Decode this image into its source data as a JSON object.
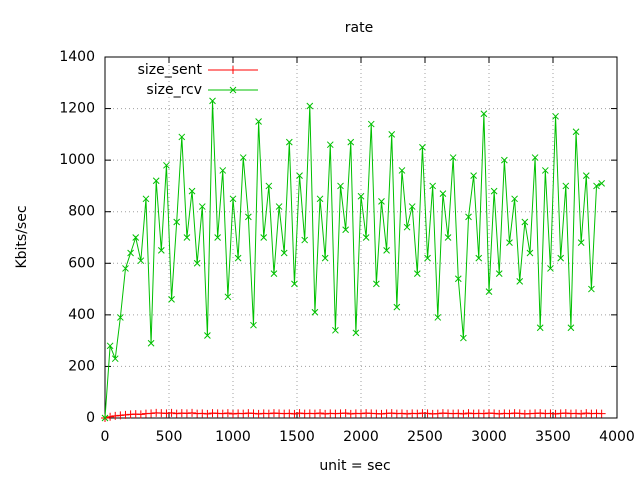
{
  "chart_data": {
    "type": "line",
    "title": "rate",
    "x_label": "unit = sec",
    "y_label": "Kbits/sec",
    "x": [
      0,
      40,
      80,
      120,
      160,
      200,
      240,
      280,
      320,
      360,
      400,
      440,
      480,
      520,
      560,
      600,
      640,
      680,
      720,
      760,
      800,
      840,
      880,
      920,
      960,
      1000,
      1040,
      1080,
      1120,
      1160,
      1200,
      1240,
      1280,
      1320,
      1360,
      1400,
      1440,
      1480,
      1520,
      1560,
      1600,
      1640,
      1680,
      1720,
      1760,
      1800,
      1840,
      1880,
      1920,
      1960,
      2000,
      2040,
      2080,
      2120,
      2160,
      2200,
      2240,
      2280,
      2320,
      2360,
      2400,
      2440,
      2480,
      2520,
      2560,
      2600,
      2640,
      2680,
      2720,
      2760,
      2800,
      2840,
      2880,
      2920,
      2960,
      3000,
      3040,
      3080,
      3120,
      3160,
      3200,
      3240,
      3280,
      3320,
      3360,
      3400,
      3440,
      3480,
      3520,
      3560,
      3600,
      3640,
      3680,
      3720,
      3760,
      3800,
      3840,
      3880
    ],
    "series": [
      {
        "name": "size_sent",
        "color": "#ff0000",
        "marker": "plus",
        "values": [
          0,
          5,
          8,
          10,
          12,
          14,
          15,
          14,
          17,
          18,
          20,
          19,
          18,
          20,
          17,
          19,
          18,
          20,
          17,
          18,
          16,
          19,
          18,
          17,
          19,
          16,
          18,
          17,
          19,
          18,
          16,
          18,
          17,
          19,
          18,
          17,
          18,
          16,
          19,
          17,
          18,
          17,
          19,
          16,
          18,
          17,
          18,
          19,
          16,
          18,
          17,
          19,
          18,
          17,
          16,
          18,
          19,
          17,
          18,
          16,
          18,
          17,
          19,
          18,
          16,
          17,
          19,
          18,
          17,
          18,
          16,
          19,
          17,
          18,
          17,
          19,
          18,
          16,
          18,
          17,
          19,
          18,
          16,
          17,
          18,
          19,
          17,
          18,
          16,
          18,
          19,
          17,
          18,
          16,
          19,
          17,
          18,
          17
        ]
      },
      {
        "name": "size_rcv",
        "color": "#00c000",
        "marker": "cross",
        "values": [
          0,
          280,
          230,
          390,
          580,
          640,
          700,
          610,
          850,
          290,
          920,
          650,
          980,
          460,
          760,
          1090,
          700,
          880,
          600,
          820,
          320,
          1230,
          700,
          960,
          470,
          850,
          620,
          1010,
          780,
          360,
          1150,
          700,
          900,
          560,
          820,
          640,
          1070,
          520,
          940,
          690,
          1210,
          410,
          850,
          620,
          1060,
          340,
          900,
          730,
          1070,
          330,
          860,
          700,
          1140,
          520,
          840,
          650,
          1100,
          430,
          960,
          740,
          820,
          560,
          1050,
          620,
          900,
          390,
          870,
          700,
          1010,
          540,
          310,
          780,
          940,
          620,
          1180,
          490,
          880,
          560,
          1000,
          680,
          850,
          530,
          760,
          640,
          1010,
          350,
          960,
          580,
          1170,
          620,
          900,
          350,
          1110,
          680,
          940,
          500,
          900,
          910
        ]
      }
    ],
    "xlim": [
      0,
      4000
    ],
    "xticks": [
      0,
      500,
      1000,
      1500,
      2000,
      2500,
      3000,
      3500,
      4000
    ],
    "ylim": [
      0,
      1400
    ],
    "yticks": [
      0,
      200,
      400,
      600,
      800,
      1000,
      1200,
      1400
    ],
    "grid": true,
    "legend": "top-left"
  }
}
